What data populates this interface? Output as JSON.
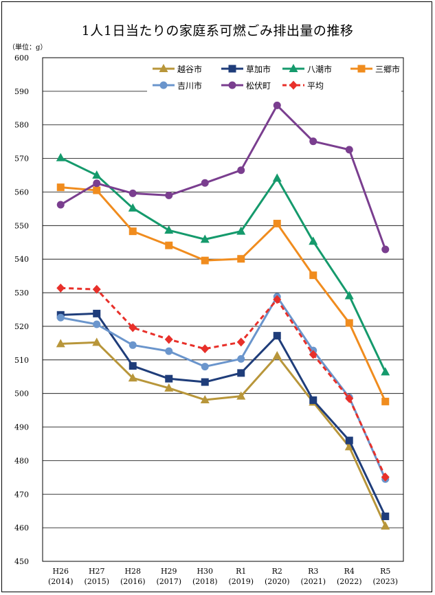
{
  "title": "1人1日当たりの家庭系可燃ごみ排出量の推移",
  "unit": "（単位：g）",
  "chart_data": {
    "type": "line",
    "title": "1人1日当たりの家庭系可燃ごみ排出量の推移",
    "ylabel": "（単位：g）",
    "ylim": [
      450,
      600
    ],
    "ytick_step": 10,
    "grid": true,
    "legend_position": "top-right",
    "categories": [
      [
        "H26",
        "(2014)"
      ],
      [
        "H27",
        "(2015)"
      ],
      [
        "H28",
        "(2016)"
      ],
      [
        "H29",
        "(2017)"
      ],
      [
        "H30",
        "(2018)"
      ],
      [
        "R1",
        "(2019)"
      ],
      [
        "R2",
        "(2020)"
      ],
      [
        "R3",
        "(2021)"
      ],
      [
        "R4",
        "(2022)"
      ],
      [
        "R5",
        "(2023)"
      ]
    ],
    "series": [
      {
        "name": "越谷市",
        "color": "#B8963A",
        "marker": "triangle",
        "dashed": false,
        "values": [
          514.8,
          515.2,
          504.6,
          501.6,
          498.1,
          499.2,
          511.2,
          497.4,
          484.1,
          460.5
        ]
      },
      {
        "name": "草加市",
        "color": "#1F3D7A",
        "marker": "square",
        "dashed": false,
        "values": [
          523.4,
          523.8,
          508.2,
          504.4,
          503.4,
          506.1,
          517.2,
          498.0,
          486.0,
          463.4
        ]
      },
      {
        "name": "八潮市",
        "color": "#159A6C",
        "marker": "triangle",
        "dashed": false,
        "values": [
          570.2,
          565.0,
          555.2,
          548.6,
          545.9,
          548.3,
          564.1,
          545.3,
          529.1,
          506.4
        ]
      },
      {
        "name": "三郷市",
        "color": "#F08C1E",
        "marker": "square",
        "dashed": false,
        "values": [
          561.4,
          560.5,
          548.3,
          544.1,
          539.6,
          540.1,
          550.6,
          535.2,
          521.0,
          497.6
        ]
      },
      {
        "name": "吉川市",
        "color": "#6A95CC",
        "marker": "circle",
        "dashed": false,
        "values": [
          522.6,
          520.6,
          514.4,
          512.6,
          508.0,
          510.3,
          528.8,
          512.8,
          498.8,
          474.5
        ]
      },
      {
        "name": "松伏町",
        "color": "#7A3E8F",
        "marker": "circle",
        "dashed": false,
        "values": [
          556.2,
          562.6,
          559.6,
          559.0,
          562.7,
          566.5,
          585.8,
          575.1,
          572.6,
          542.9
        ]
      },
      {
        "name": "平均",
        "color": "#E8302A",
        "marker": "diamond",
        "dashed": true,
        "values": [
          531.4,
          531.0,
          519.6,
          516.1,
          513.3,
          515.3,
          528.0,
          511.6,
          498.5,
          475.1
        ]
      }
    ]
  }
}
